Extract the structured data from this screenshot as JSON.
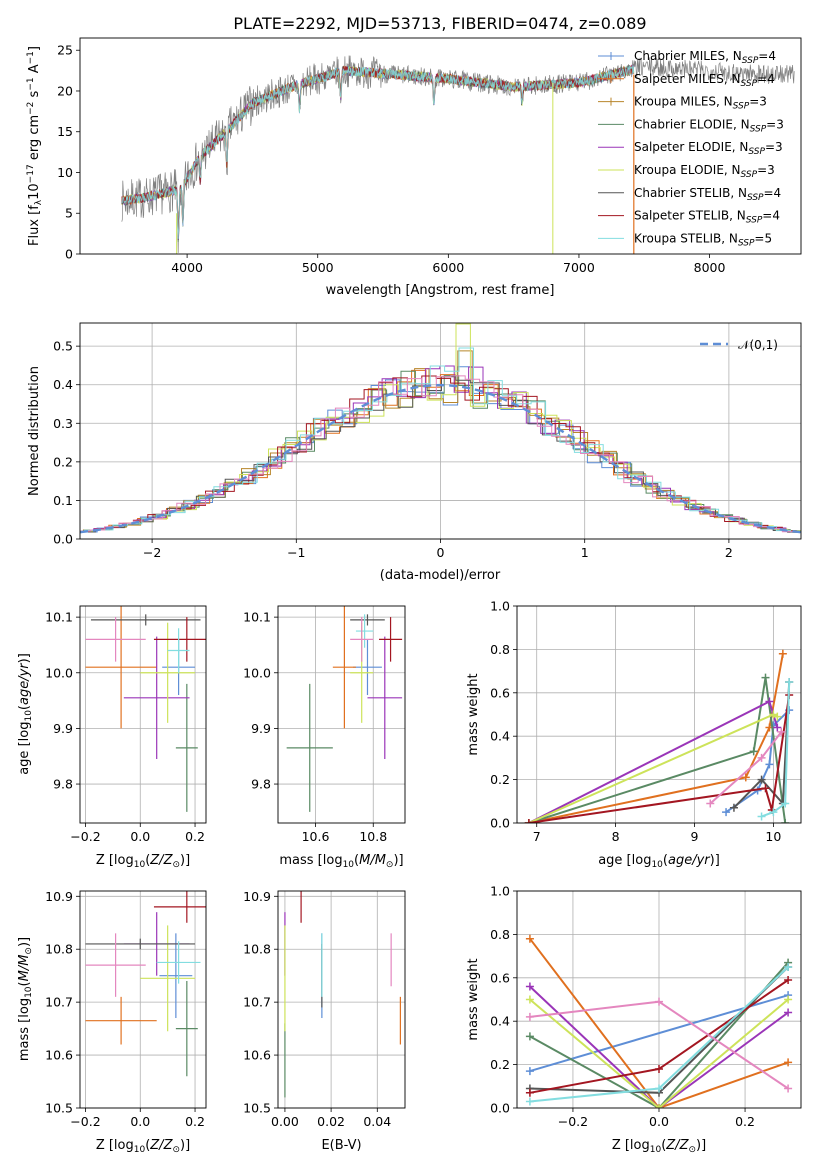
{
  "title": "PLATE=2292, MJD=53713, FIBERID=0474, z=0.089",
  "colors": {
    "c0": "#5e8ed6",
    "c1": "#e0701f",
    "c2": "#b8862b",
    "c3": "#5a8a64",
    "c4": "#9a35b8",
    "c5": "#cde35a",
    "c6": "#555555",
    "c7": "#a31621",
    "c8": "#83dde0",
    "c9": "#e487bf",
    "grid": "#b0b0b0"
  },
  "models": [
    {
      "name": "Chabrier MILES",
      "nssp": "4",
      "color_key": "c0"
    },
    {
      "name": "Salpeter MILES",
      "nssp": "4",
      "color_key": "c1"
    },
    {
      "name": "Kroupa MILES",
      "nssp": "3",
      "color_key": "c2"
    },
    {
      "name": "Chabrier ELODIE",
      "nssp": "3",
      "color_key": "c3"
    },
    {
      "name": "Salpeter ELODIE",
      "nssp": "3",
      "color_key": "c4"
    },
    {
      "name": "Kroupa ELODIE",
      "nssp": "3",
      "color_key": "c5"
    },
    {
      "name": "Chabrier STELIB",
      "nssp": "4",
      "color_key": "c6"
    },
    {
      "name": "Salpeter STELIB",
      "nssp": "4",
      "color_key": "c7"
    },
    {
      "name": "Kroupa STELIB",
      "nssp": "5",
      "color_key": "c8"
    }
  ],
  "chart_data": [
    {
      "id": "spectrum",
      "type": "line",
      "xlabel": "wavelength [Angstrom, rest frame]",
      "ylabel": "Flux [f_λ 10^-17 erg cm^-2 s^-1 A^-1]",
      "xlim": [
        3180,
        8700
      ],
      "ylim": [
        0,
        26.5
      ],
      "xticks": [
        4000,
        5000,
        6000,
        7000,
        8000
      ],
      "yticks": [
        0,
        5,
        10,
        15,
        20,
        25
      ],
      "grid": false,
      "legend": "top-right",
      "anchors": {
        "x": [
          3500,
          3700,
          3950,
          4100,
          4300,
          4500,
          4800,
          5200,
          5600,
          6000,
          6500,
          7000,
          7500,
          8000,
          8500
        ],
        "y": [
          6.5,
          7,
          8,
          12,
          15,
          18.5,
          20.5,
          22.5,
          22,
          21.5,
          20.5,
          21,
          23,
          22.5,
          22
        ]
      },
      "data_range": [
        3500,
        8650
      ],
      "model_range_end": 7420,
      "sky_line_x": [
        6800,
        6600
      ]
    },
    {
      "id": "residuals",
      "type": "line",
      "xlabel": "(data-model)/error",
      "ylabel": "Normed distribution",
      "xlim": [
        -2.5,
        2.5
      ],
      "ylim": [
        0,
        0.56
      ],
      "xticks": [
        -2,
        -1,
        0,
        1,
        2
      ],
      "yticks": [
        0.0,
        0.1,
        0.2,
        0.3,
        0.4,
        0.5
      ],
      "grid": true,
      "legend": "top-right",
      "reference_curve": "𝒩(0,1)",
      "bin_width": 0.1
    },
    {
      "id": "age-vs-Z",
      "type": "scatter",
      "xlabel": "Z [log10(Z/Z☉)]",
      "ylabel": "age [log10(age/yr)]",
      "xlim": [
        -0.22,
        0.24
      ],
      "ylim": [
        9.73,
        10.12
      ],
      "xticks": [
        -0.2,
        0.0,
        0.2
      ],
      "yticks": [
        9.8,
        9.9,
        10.0,
        10.1
      ],
      "grid": true,
      "points": [
        {
          "m": 0,
          "x": 0.14,
          "xe": 0.06,
          "y": 10.01,
          "ye": 0.05
        },
        {
          "m": 1,
          "x": -0.07,
          "xe": 0.13,
          "y": 10.01,
          "ye": 0.11
        },
        {
          "m": 3,
          "x": 0.17,
          "xe": 0.04,
          "y": 9.865,
          "ye": 0.115
        },
        {
          "m": 4,
          "x": 0.06,
          "xe": 0.12,
          "y": 9.955,
          "ye": 0.11
        },
        {
          "m": 5,
          "x": 0.1,
          "xe": 0.1,
          "y": 10.0,
          "ye": 0.09
        },
        {
          "m": 6,
          "x": 0.02,
          "xe": 0.2,
          "y": 10.095,
          "ye": 0.01
        },
        {
          "m": 7,
          "x": 0.17,
          "xe": 0.12,
          "y": 10.06,
          "ye": 0.04
        },
        {
          "m": 8,
          "x": 0.14,
          "xe": 0.04,
          "y": 10.04,
          "ye": 0.04
        },
        {
          "m": 9,
          "x": -0.09,
          "xe": 0.11,
          "y": 10.06,
          "ye": 0.04
        }
      ]
    },
    {
      "id": "age-vs-mass",
      "type": "scatter",
      "xlabel": "mass [log10(M/M☉)]",
      "ylabel": "",
      "xlim": [
        10.47,
        10.91
      ],
      "ylim": [
        9.73,
        10.12
      ],
      "xticks": [
        10.6,
        10.8
      ],
      "yticks": [
        9.8,
        9.9,
        10.0,
        10.1
      ],
      "grid": true,
      "points": [
        {
          "m": 0,
          "x": 10.78,
          "xe": 0.05,
          "y": 10.01,
          "ye": 0.05
        },
        {
          "m": 1,
          "x": 10.7,
          "xe": 0.04,
          "y": 10.01,
          "ye": 0.11
        },
        {
          "m": 3,
          "x": 10.58,
          "xe": 0.08,
          "y": 9.865,
          "ye": 0.115
        },
        {
          "m": 4,
          "x": 10.84,
          "xe": 0.06,
          "y": 9.955,
          "ye": 0.11
        },
        {
          "m": 5,
          "x": 10.76,
          "xe": 0.04,
          "y": 10.0,
          "ye": 0.09
        },
        {
          "m": 6,
          "x": 10.78,
          "xe": 0.06,
          "y": 10.095,
          "ye": 0.01
        },
        {
          "m": 7,
          "x": 10.86,
          "xe": 0.04,
          "y": 10.06,
          "ye": 0.04
        },
        {
          "m": 8,
          "x": 10.77,
          "xe": 0.03,
          "y": 10.075,
          "ye": 0.03
        },
        {
          "m": 9,
          "x": 10.76,
          "xe": 0.04,
          "y": 10.06,
          "ye": 0.04
        }
      ]
    },
    {
      "id": "mass-weight-vs-age",
      "type": "line",
      "xlabel": "age [log10(age/yr)]",
      "ylabel": "mass weight",
      "xlim": [
        6.75,
        10.35
      ],
      "ylim": [
        0,
        1.0
      ],
      "xticks": [
        7,
        8,
        9,
        10
      ],
      "yticks": [
        0.0,
        0.2,
        0.4,
        0.6,
        0.8,
        1.0
      ],
      "grid": true,
      "series": [
        {
          "m": 0,
          "x": [
            9.4,
            9.8,
            9.95,
            10.0,
            10.2
          ],
          "y": [
            0.05,
            0.15,
            0.27,
            0.45,
            0.52
          ]
        },
        {
          "m": 1,
          "x": [
            6.9,
            9.65,
            9.95,
            10.12
          ],
          "y": [
            0.0,
            0.21,
            0.44,
            0.78
          ]
        },
        {
          "m": 3,
          "x": [
            6.9,
            9.75,
            9.9,
            10.15
          ],
          "y": [
            0.0,
            0.33,
            0.67,
            0.0
          ]
        },
        {
          "m": 4,
          "x": [
            6.9,
            9.95,
            10.05
          ],
          "y": [
            0.0,
            0.56,
            0.44
          ]
        },
        {
          "m": 5,
          "x": [
            6.9,
            10.0,
            10.05
          ],
          "y": [
            0.0,
            0.5,
            0.49
          ]
        },
        {
          "m": 6,
          "x": [
            9.5,
            9.85,
            10.12,
            10.2
          ],
          "y": [
            0.07,
            0.2,
            0.09,
            0.65
          ]
        },
        {
          "m": 7,
          "x": [
            6.9,
            9.9,
            9.98,
            10.2
          ],
          "y": [
            0.0,
            0.16,
            0.06,
            0.59
          ]
        },
        {
          "m": 8,
          "x": [
            9.85,
            10.0,
            10.15,
            10.2
          ],
          "y": [
            0.03,
            0.05,
            0.09,
            0.65
          ]
        },
        {
          "m": 9,
          "x": [
            9.2,
            9.85,
            10.1
          ],
          "y": [
            0.09,
            0.3,
            0.42
          ]
        }
      ]
    },
    {
      "id": "mass-vs-Z",
      "type": "scatter",
      "xlabel": "Z [log10(Z/Z☉)]",
      "ylabel": "mass [log10(M/M☉)]",
      "xlim": [
        -0.22,
        0.24
      ],
      "ylim": [
        10.5,
        10.91
      ],
      "xticks": [
        -0.2,
        0.0,
        0.2
      ],
      "yticks": [
        10.5,
        10.6,
        10.7,
        10.8,
        10.9
      ],
      "grid": true,
      "points": [
        {
          "m": 0,
          "x": 0.13,
          "xe": 0.06,
          "y": 10.75,
          "ye": 0.08
        },
        {
          "m": 1,
          "x": -0.07,
          "xe": 0.13,
          "y": 10.665,
          "ye": 0.045
        },
        {
          "m": 3,
          "x": 0.17,
          "xe": 0.04,
          "y": 10.65,
          "ye": 0.09
        },
        {
          "m": 4,
          "x": 0.06,
          "xe": 0.12,
          "y": 10.81,
          "ye": 0.06
        },
        {
          "m": 5,
          "x": 0.1,
          "xe": 0.1,
          "y": 10.745,
          "ye": 0.1
        },
        {
          "m": 6,
          "x": 0.0,
          "xe": 0.2,
          "y": 10.81,
          "ye": 0.01
        },
        {
          "m": 7,
          "x": 0.17,
          "xe": 0.12,
          "y": 10.88,
          "ye": 0.03
        },
        {
          "m": 8,
          "x": 0.14,
          "xe": 0.08,
          "y": 10.775,
          "ye": 0.04
        },
        {
          "m": 9,
          "x": -0.09,
          "xe": 0.11,
          "y": 10.77,
          "ye": 0.06
        }
      ]
    },
    {
      "id": "mass-vs-EBV",
      "type": "scatter",
      "xlabel": "E(B-V)",
      "ylabel": "",
      "xlim": [
        -0.003,
        0.052
      ],
      "ylim": [
        10.5,
        10.91
      ],
      "xticks": [
        0.0,
        0.02,
        0.04
      ],
      "yticks": [
        10.5,
        10.6,
        10.7,
        10.8,
        10.9
      ],
      "grid": true,
      "points": [
        {
          "m": 0,
          "x": 0.016,
          "y": 10.75,
          "ye": 0.08
        },
        {
          "m": 1,
          "x": 0.05,
          "y": 10.665,
          "ye": 0.045
        },
        {
          "m": 3,
          "x": 0.0,
          "y": 10.59,
          "ye": 0.07
        },
        {
          "m": 4,
          "x": 0.0,
          "y": 10.81,
          "ye": 0.06
        },
        {
          "m": 5,
          "x": 0.0,
          "y": 10.745,
          "ye": 0.1
        },
        {
          "m": 6,
          "x": 0.016,
          "y": 10.75,
          "ye": 0.06
        },
        {
          "m": 7,
          "x": 0.007,
          "y": 10.88,
          "ye": 0.03
        },
        {
          "m": 8,
          "x": 0.016,
          "y": 10.77,
          "ye": 0.06
        },
        {
          "m": 9,
          "x": 0.046,
          "y": 10.78,
          "ye": 0.05
        }
      ]
    },
    {
      "id": "mass-weight-vs-Z",
      "type": "line",
      "xlabel": "Z [log10(Z/Z☉)]",
      "ylabel": "mass weight",
      "xlim": [
        -0.33,
        0.33
      ],
      "ylim": [
        0,
        1.0
      ],
      "xticks": [
        -0.2,
        0.0,
        0.2
      ],
      "yticks": [
        0.0,
        0.2,
        0.4,
        0.6,
        0.8,
        1.0
      ],
      "grid": true,
      "series": [
        {
          "m": 0,
          "x": [
            -0.3,
            0.3
          ],
          "y": [
            0.17,
            0.52
          ]
        },
        {
          "m": 1,
          "x": [
            -0.3,
            0.0,
            0.3
          ],
          "y": [
            0.78,
            0.0,
            0.21
          ]
        },
        {
          "m": 3,
          "x": [
            -0.3,
            0.0,
            0.3
          ],
          "y": [
            0.33,
            0.0,
            0.67
          ]
        },
        {
          "m": 4,
          "x": [
            -0.3,
            0.0,
            0.3
          ],
          "y": [
            0.56,
            0.0,
            0.44
          ]
        },
        {
          "m": 5,
          "x": [
            -0.3,
            0.0,
            0.3
          ],
          "y": [
            0.5,
            0.0,
            0.5
          ]
        },
        {
          "m": 6,
          "x": [
            -0.3,
            0.0,
            0.3
          ],
          "y": [
            0.09,
            0.07,
            0.65
          ]
        },
        {
          "m": 7,
          "x": [
            -0.3,
            0.0,
            0.3
          ],
          "y": [
            0.07,
            0.18,
            0.59
          ]
        },
        {
          "m": 8,
          "x": [
            -0.3,
            0.0,
            0.3
          ],
          "y": [
            0.03,
            0.09,
            0.65
          ]
        },
        {
          "m": 9,
          "x": [
            -0.3,
            0.0,
            0.3
          ],
          "y": [
            0.42,
            0.49,
            0.09
          ]
        }
      ]
    }
  ]
}
